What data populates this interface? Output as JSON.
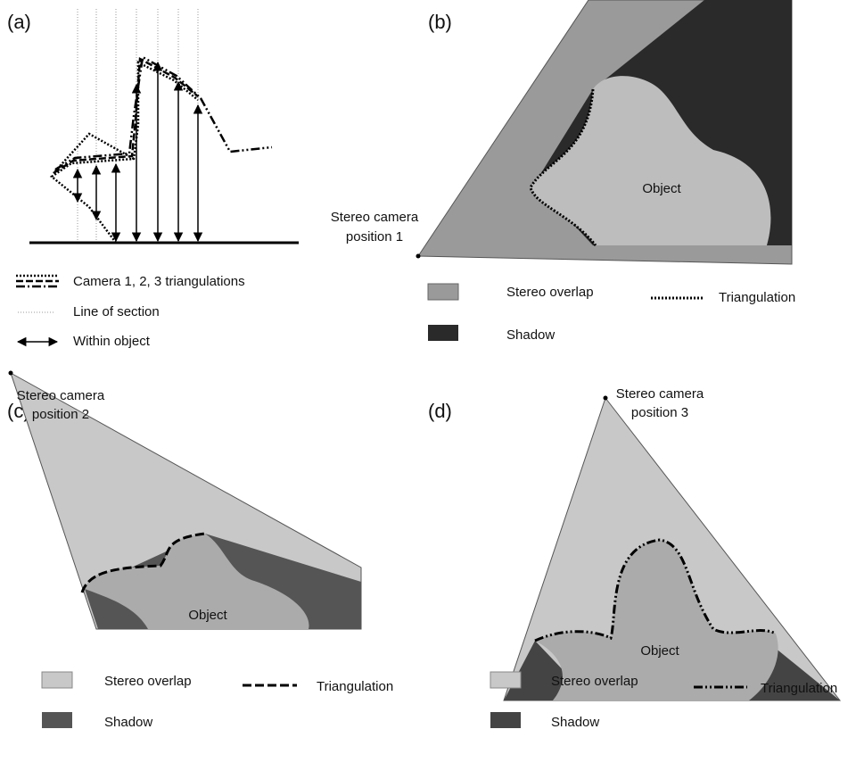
{
  "panels": [
    {
      "label": "(a)",
      "legend": [
        "Camera 1, 2, 3 triangulations",
        "Line of section",
        "Within object"
      ]
    },
    {
      "label": "(b)",
      "camera_label": [
        "Stereo camera",
        "position 1"
      ],
      "object_label": "Object",
      "legend": [
        "Stereo overlap",
        "Triangulation",
        "Shadow"
      ]
    },
    {
      "label": "(c)",
      "camera_label": [
        "Stereo camera",
        "position 2"
      ],
      "object_label": "Object",
      "legend": [
        "Stereo overlap",
        "Triangulation",
        "Shadow"
      ]
    },
    {
      "label": "(d)",
      "camera_label": [
        "Stereo camera",
        "position 3"
      ],
      "object_label": "Object",
      "legend": [
        "Stereo overlap",
        "Triangulation",
        "Shadow"
      ]
    }
  ]
}
